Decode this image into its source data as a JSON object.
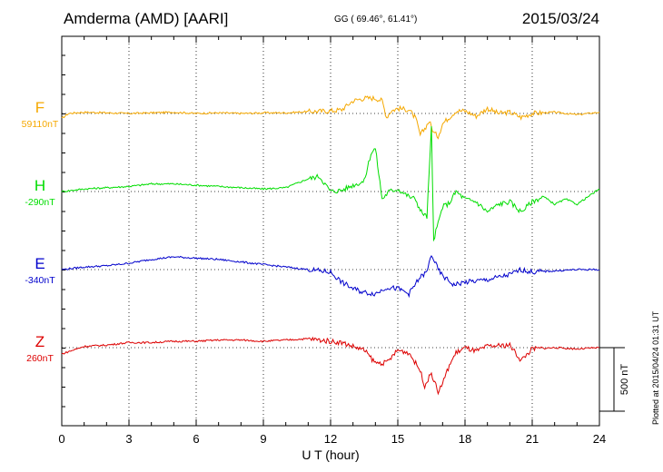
{
  "header": {
    "station": "Amderma (AMD)  [AARI]",
    "coords": "GG ( 69.46°,  61.41°)",
    "date": "2015/03/24"
  },
  "footer_note": "Plotted at 2015/04/24 01:31  UT",
  "chart_data": {
    "type": "line",
    "xlabel": "U T (hour)",
    "xlim": [
      0,
      24
    ],
    "xticks": [
      0,
      3,
      6,
      9,
      12,
      15,
      18,
      21,
      24
    ],
    "grid": true,
    "scale_bar": {
      "label": "500 nT",
      "value": 500
    },
    "series": [
      {
        "name": "F",
        "baseline_label": "59110nT",
        "color": "#f5a800",
        "points": [
          [
            0,
            -40
          ],
          [
            0.3,
            0
          ],
          [
            0.6,
            5
          ],
          [
            1,
            10
          ],
          [
            2,
            5
          ],
          [
            3,
            0
          ],
          [
            4,
            5
          ],
          [
            5,
            10
          ],
          [
            6,
            0
          ],
          [
            7,
            5
          ],
          [
            8,
            0
          ],
          [
            9,
            5
          ],
          [
            10,
            5
          ],
          [
            11,
            15
          ],
          [
            12,
            20
          ],
          [
            12.5,
            30
          ],
          [
            13,
            100
          ],
          [
            13.5,
            120
          ],
          [
            14,
            120
          ],
          [
            14.3,
            100
          ],
          [
            14.5,
            -30
          ],
          [
            14.7,
            20
          ],
          [
            15,
            40
          ],
          [
            15.5,
            30
          ],
          [
            15.8,
            -40
          ],
          [
            16,
            -170
          ],
          [
            16.2,
            -120
          ],
          [
            16.4,
            -60
          ],
          [
            16.6,
            -150
          ],
          [
            16.8,
            -180
          ],
          [
            17,
            -80
          ],
          [
            17.3,
            -30
          ],
          [
            17.6,
            20
          ],
          [
            18,
            20
          ],
          [
            18.5,
            -20
          ],
          [
            19,
            40
          ],
          [
            19.5,
            0
          ],
          [
            20,
            10
          ],
          [
            20.5,
            -30
          ],
          [
            21,
            0
          ],
          [
            22,
            10
          ],
          [
            23,
            -10
          ],
          [
            24,
            10
          ]
        ]
      },
      {
        "name": "H",
        "baseline_label": "-290nT",
        "color": "#00dd00",
        "points": [
          [
            0,
            0
          ],
          [
            1,
            20
          ],
          [
            2,
            30
          ],
          [
            3,
            40
          ],
          [
            4,
            60
          ],
          [
            5,
            60
          ],
          [
            6,
            50
          ],
          [
            7,
            40
          ],
          [
            8,
            30
          ],
          [
            9,
            20
          ],
          [
            10,
            30
          ],
          [
            11,
            100
          ],
          [
            11.5,
            120
          ],
          [
            12,
            0
          ],
          [
            12.5,
            10
          ],
          [
            13,
            50
          ],
          [
            13.5,
            80
          ],
          [
            13.8,
            300
          ],
          [
            14,
            340
          ],
          [
            14.3,
            -60
          ],
          [
            14.6,
            0
          ],
          [
            15,
            20
          ],
          [
            15.5,
            -40
          ],
          [
            15.8,
            -60
          ],
          [
            16,
            -150
          ],
          [
            16.3,
            -200
          ],
          [
            16.5,
            500
          ],
          [
            16.6,
            -380
          ],
          [
            16.8,
            -250
          ],
          [
            17,
            -120
          ],
          [
            17.3,
            -90
          ],
          [
            17.6,
            0
          ],
          [
            18,
            -60
          ],
          [
            18.5,
            -80
          ],
          [
            19,
            -160
          ],
          [
            19.5,
            -100
          ],
          [
            20,
            -80
          ],
          [
            20.5,
            -160
          ],
          [
            21,
            -80
          ],
          [
            21.5,
            -40
          ],
          [
            22,
            -100
          ],
          [
            22.5,
            -60
          ],
          [
            23,
            -100
          ],
          [
            23.5,
            -40
          ],
          [
            24,
            20
          ]
        ]
      },
      {
        "name": "E",
        "baseline_label": "-340nT",
        "color": "#0000cc",
        "points": [
          [
            0,
            0
          ],
          [
            1,
            20
          ],
          [
            2,
            30
          ],
          [
            3,
            50
          ],
          [
            4,
            80
          ],
          [
            5,
            100
          ],
          [
            6,
            90
          ],
          [
            7,
            80
          ],
          [
            8,
            60
          ],
          [
            9,
            40
          ],
          [
            10,
            20
          ],
          [
            11,
            0
          ],
          [
            12,
            -20
          ],
          [
            12.5,
            -100
          ],
          [
            13,
            -150
          ],
          [
            13.5,
            -180
          ],
          [
            14,
            -190
          ],
          [
            14.5,
            -140
          ],
          [
            15,
            -150
          ],
          [
            15.5,
            -190
          ],
          [
            16,
            -60
          ],
          [
            16.3,
            -20
          ],
          [
            16.5,
            120
          ],
          [
            16.8,
            0
          ],
          [
            17,
            -50
          ],
          [
            17.5,
            -120
          ],
          [
            18,
            -100
          ],
          [
            19,
            -80
          ],
          [
            20,
            -40
          ],
          [
            20.5,
            0
          ],
          [
            21,
            -20
          ],
          [
            22,
            -10
          ],
          [
            23,
            0
          ],
          [
            24,
            0
          ]
        ]
      },
      {
        "name": "Z",
        "baseline_label": "260nT",
        "color": "#dd0000",
        "points": [
          [
            0,
            -50
          ],
          [
            1,
            10
          ],
          [
            2,
            20
          ],
          [
            3,
            40
          ],
          [
            4,
            40
          ],
          [
            5,
            50
          ],
          [
            6,
            50
          ],
          [
            7,
            60
          ],
          [
            8,
            60
          ],
          [
            9,
            50
          ],
          [
            10,
            60
          ],
          [
            11,
            70
          ],
          [
            12,
            50
          ],
          [
            12.5,
            40
          ],
          [
            13,
            10
          ],
          [
            13.5,
            -20
          ],
          [
            14,
            -120
          ],
          [
            14.5,
            -120
          ],
          [
            15,
            -20
          ],
          [
            15.5,
            -40
          ],
          [
            16,
            -180
          ],
          [
            16.2,
            -300
          ],
          [
            16.5,
            -200
          ],
          [
            16.8,
            -350
          ],
          [
            17,
            -280
          ],
          [
            17.3,
            -140
          ],
          [
            17.6,
            -40
          ],
          [
            18,
            0
          ],
          [
            18.5,
            -30
          ],
          [
            19,
            10
          ],
          [
            20,
            20
          ],
          [
            20.5,
            -100
          ],
          [
            21,
            -10
          ],
          [
            22,
            0
          ],
          [
            23,
            -10
          ],
          [
            24,
            0
          ]
        ]
      }
    ]
  }
}
